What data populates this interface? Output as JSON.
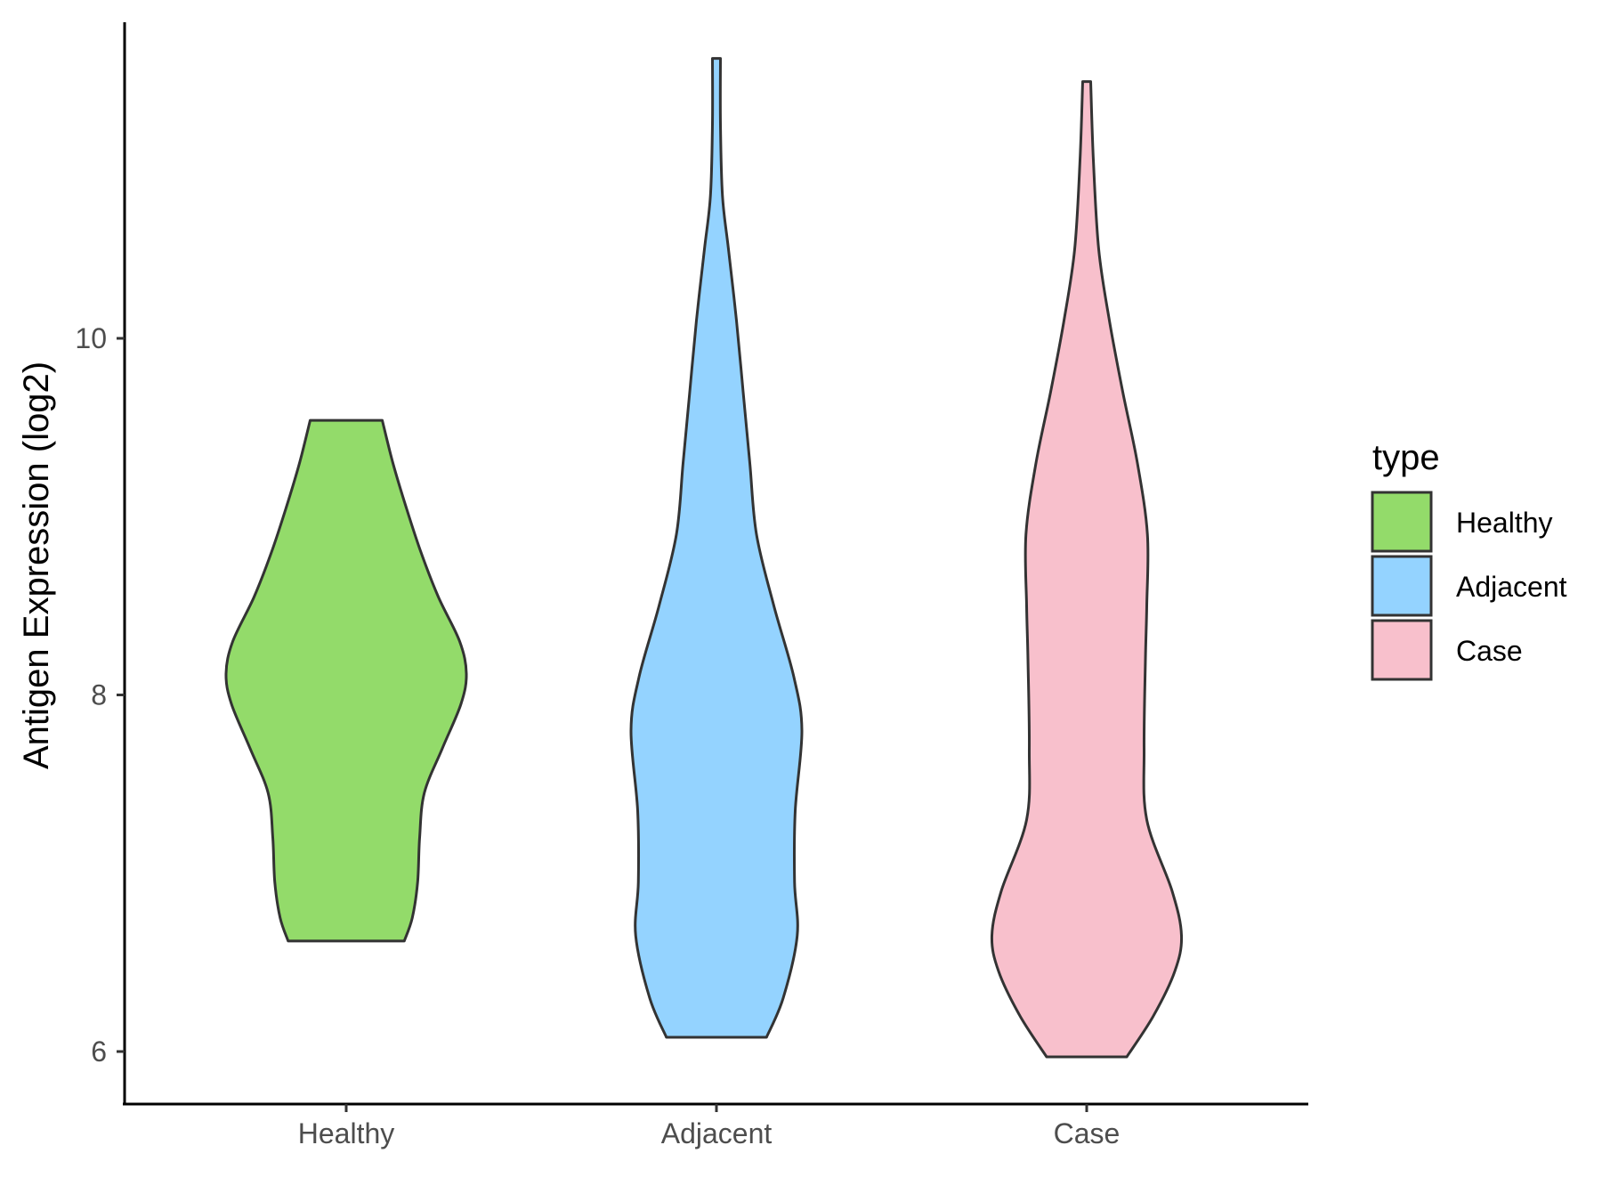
{
  "chart_data": {
    "type": "violin",
    "title": "",
    "xlabel": "",
    "ylabel": "Antigen Expression (log2)",
    "categories": [
      "Healthy",
      "Adjacent",
      "Case"
    ],
    "y_ticks": [
      6,
      8,
      10
    ],
    "ylim": [
      5.7,
      11.8
    ],
    "grid": false,
    "legend": {
      "title": "type",
      "placement": "right",
      "items": [
        {
          "label": "Healthy",
          "color": "#93DB6A"
        },
        {
          "label": "Adjacent",
          "color": "#94D3FF"
        },
        {
          "label": "Case",
          "color": "#F8C0CC"
        }
      ]
    },
    "series": [
      {
        "category": "Healthy",
        "color": "#93DB6A",
        "ymin": 6.62,
        "ymax": 9.54,
        "density_profile": [
          {
            "y": 6.62,
            "w": 0.435
          },
          {
            "y": 6.75,
            "w": 0.495
          },
          {
            "y": 6.95,
            "w": 0.535
          },
          {
            "y": 7.2,
            "w": 0.55
          },
          {
            "y": 7.45,
            "w": 0.585
          },
          {
            "y": 7.7,
            "w": 0.72
          },
          {
            "y": 7.95,
            "w": 0.86
          },
          {
            "y": 8.12,
            "w": 0.9
          },
          {
            "y": 8.3,
            "w": 0.85
          },
          {
            "y": 8.55,
            "w": 0.69
          },
          {
            "y": 8.8,
            "w": 0.56
          },
          {
            "y": 9.05,
            "w": 0.45
          },
          {
            "y": 9.3,
            "w": 0.35
          },
          {
            "y": 9.54,
            "w": 0.27
          }
        ]
      },
      {
        "category": "Adjacent",
        "color": "#94D3FF",
        "ymin": 6.08,
        "ymax": 11.57,
        "density_profile": [
          {
            "y": 6.08,
            "w": 0.375
          },
          {
            "y": 6.3,
            "w": 0.5
          },
          {
            "y": 6.65,
            "w": 0.605
          },
          {
            "y": 6.95,
            "w": 0.585
          },
          {
            "y": 7.35,
            "w": 0.59
          },
          {
            "y": 7.8,
            "w": 0.64
          },
          {
            "y": 8.1,
            "w": 0.58
          },
          {
            "y": 8.5,
            "w": 0.43
          },
          {
            "y": 8.9,
            "w": 0.3
          },
          {
            "y": 9.3,
            "w": 0.25
          },
          {
            "y": 9.7,
            "w": 0.2
          },
          {
            "y": 10.1,
            "w": 0.15
          },
          {
            "y": 10.5,
            "w": 0.09
          },
          {
            "y": 10.8,
            "w": 0.045
          },
          {
            "y": 11.2,
            "w": 0.03
          },
          {
            "y": 11.57,
            "w": 0.03
          }
        ]
      },
      {
        "category": "Case",
        "color": "#F8C0CC",
        "ymin": 5.97,
        "ymax": 11.44,
        "density_profile": [
          {
            "y": 5.97,
            "w": 0.3
          },
          {
            "y": 6.2,
            "w": 0.5
          },
          {
            "y": 6.45,
            "w": 0.66
          },
          {
            "y": 6.65,
            "w": 0.71
          },
          {
            "y": 6.9,
            "w": 0.64
          },
          {
            "y": 7.3,
            "w": 0.45
          },
          {
            "y": 7.7,
            "w": 0.43
          },
          {
            "y": 8.2,
            "w": 0.44
          },
          {
            "y": 8.5,
            "w": 0.45
          },
          {
            "y": 8.9,
            "w": 0.455
          },
          {
            "y": 9.3,
            "w": 0.38
          },
          {
            "y": 9.7,
            "w": 0.27
          },
          {
            "y": 10.1,
            "w": 0.17
          },
          {
            "y": 10.5,
            "w": 0.09
          },
          {
            "y": 11.0,
            "w": 0.05
          },
          {
            "y": 11.44,
            "w": 0.03
          }
        ]
      }
    ]
  }
}
